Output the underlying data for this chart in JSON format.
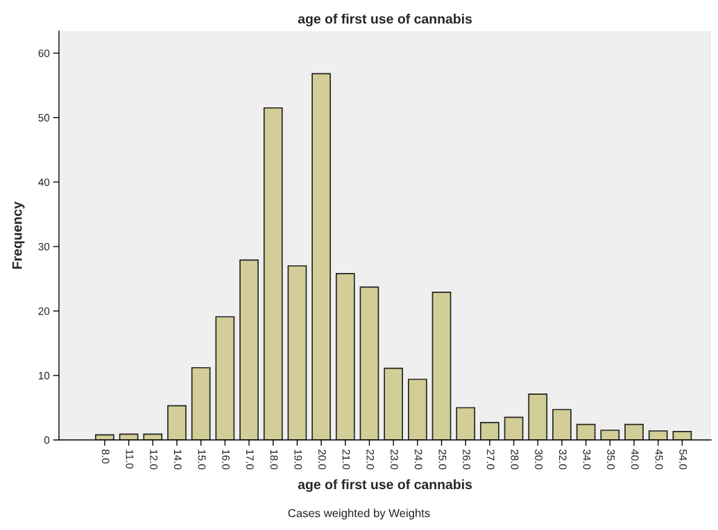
{
  "chart_data": {
    "type": "bar",
    "title": "age of first use of cannabis",
    "xlabel": "age of first use of cannabis",
    "ylabel": "Frequency",
    "categories": [
      "8.0",
      "11.0",
      "12.0",
      "14.0",
      "15.0",
      "16.0",
      "17.0",
      "18.0",
      "19.0",
      "20.0",
      "21.0",
      "22.0",
      "23.0",
      "24.0",
      "25.0",
      "26.0",
      "27.0",
      "28.0",
      "30.0",
      "32.0",
      "34.0",
      "35.0",
      "40.0",
      "45.0",
      "54.0"
    ],
    "values": [
      0.8,
      0.9,
      0.9,
      5.3,
      11.2,
      19.1,
      27.9,
      51.5,
      27.0,
      56.8,
      25.8,
      23.7,
      11.1,
      9.4,
      22.9,
      5.0,
      2.7,
      3.5,
      7.1,
      4.7,
      2.4,
      1.5,
      2.4,
      1.4,
      1.3
    ],
    "color": "#d3ce97",
    "ylim": [
      0,
      63.4
    ],
    "yticks": [
      0,
      10,
      20,
      30,
      40,
      50,
      60
    ],
    "grid": false,
    "legend": false,
    "annotations": [
      "Cases weighted by Weights"
    ]
  }
}
